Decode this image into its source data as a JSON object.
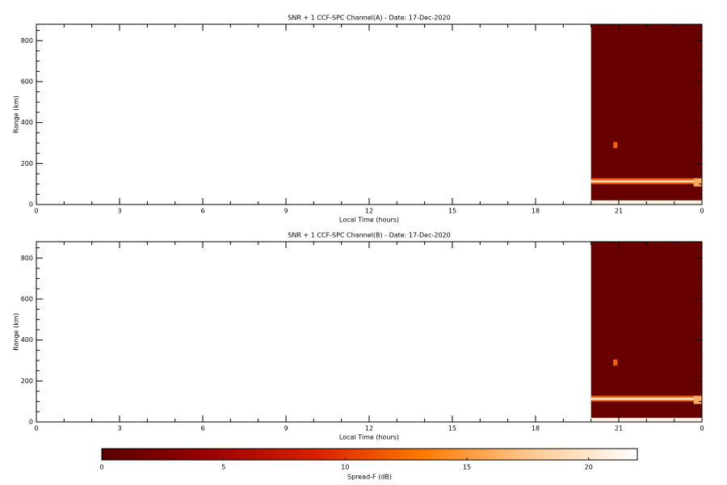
{
  "chart_data": [
    {
      "type": "heatmap",
      "title": "SNR + 1 CCF-SPC Channel(A) - Date: 17-Dec-2020",
      "xlabel": "Local Time (hours)",
      "ylabel": "Range (km)",
      "xlim": [
        0,
        24
      ],
      "xticks": [
        0,
        3,
        6,
        9,
        12,
        15,
        18,
        21,
        {
          "value": 24,
          "label": "0"
        }
      ],
      "xminor": 3,
      "ylim": [
        0,
        880
      ],
      "yticks": [
        0,
        200,
        400,
        600,
        800
      ],
      "yminor": 4,
      "cells": [
        {
          "x": [
            20,
            24
          ],
          "y": [
            20,
            880
          ],
          "value": 1
        },
        {
          "x": [
            20,
            24
          ],
          "y": [
            0,
            20
          ],
          "value": 21
        },
        {
          "x": [
            20,
            24
          ],
          "y": [
            100,
            128
          ],
          "value": 12
        },
        {
          "x": [
            20,
            24
          ],
          "y": [
            108,
            118
          ],
          "value": 20
        },
        {
          "x": [
            23.7,
            24
          ],
          "y": [
            88,
            128
          ],
          "value": 16
        },
        {
          "x": [
            20.8,
            20.95
          ],
          "y": [
            275,
            305
          ],
          "value": 12
        }
      ]
    },
    {
      "type": "heatmap",
      "title": "SNR + 1 CCF-SPC Channel(B) - Date: 17-Dec-2020",
      "xlabel": "Local Time (hours)",
      "ylabel": "Range (km)",
      "xlim": [
        0,
        24
      ],
      "xticks": [
        0,
        3,
        6,
        9,
        12,
        15,
        18,
        21,
        {
          "value": 24,
          "label": "0"
        }
      ],
      "xminor": 3,
      "ylim": [
        0,
        880
      ],
      "yticks": [
        0,
        200,
        400,
        600,
        800
      ],
      "yminor": 4,
      "cells": [
        {
          "x": [
            20,
            24
          ],
          "y": [
            20,
            880
          ],
          "value": 1
        },
        {
          "x": [
            20,
            24
          ],
          "y": [
            0,
            20
          ],
          "value": 21
        },
        {
          "x": [
            20,
            24
          ],
          "y": [
            100,
            128
          ],
          "value": 12
        },
        {
          "x": [
            20,
            24
          ],
          "y": [
            108,
            118
          ],
          "value": 20
        },
        {
          "x": [
            23.7,
            24
          ],
          "y": [
            88,
            128
          ],
          "value": 16
        },
        {
          "x": [
            20.8,
            20.95
          ],
          "y": [
            275,
            305
          ],
          "value": 12
        }
      ]
    }
  ],
  "colorbar": {
    "label": "Spread-F (dB)",
    "lim": [
      0,
      22
    ],
    "ticks": [
      0,
      5,
      10,
      15,
      20
    ],
    "colormap": [
      "#5a0000",
      "#9a0000",
      "#d82000",
      "#ff7a00",
      "#ffc890",
      "#ffffff"
    ]
  }
}
